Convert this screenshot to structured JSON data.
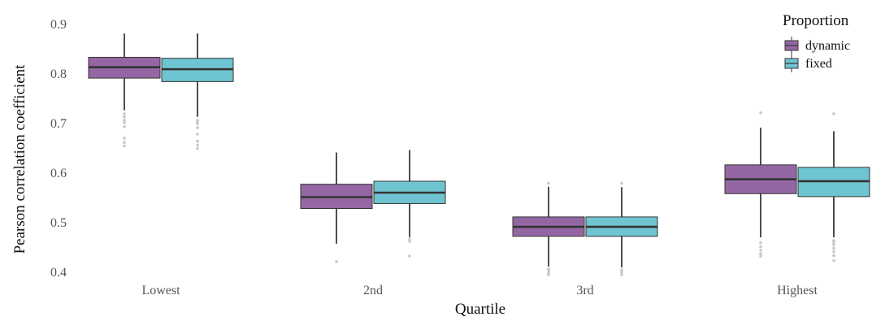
{
  "chart_data": {
    "type": "boxplot",
    "xlabel": "Quartile",
    "ylabel": "Pearson correlation coefficient",
    "ylim": [
      0.4,
      0.9
    ],
    "yticks": [
      "0.4",
      "0.5",
      "0.6",
      "0.7",
      "0.8",
      "0.9"
    ],
    "categories": [
      "Lowest",
      "2nd",
      "3rd",
      "Highest"
    ],
    "grid": false,
    "legend": {
      "title": "Proportion",
      "position": "top-right"
    },
    "series": [
      {
        "name": "dynamic",
        "color": "#9467a4",
        "boxes": [
          {
            "category": "Lowest",
            "whisker_low": 0.725,
            "q1": 0.79,
            "median": 0.812,
            "q3": 0.832,
            "whisker_high": 0.88,
            "outliers": [
              0.718,
              0.712,
              0.705,
              0.7,
              0.692,
              0.669,
              0.66,
              0.653
            ]
          },
          {
            "category": "2nd",
            "whisker_low": 0.456,
            "q1": 0.527,
            "median": 0.55,
            "q3": 0.576,
            "whisker_high": 0.64,
            "outliers": [
              0.42
            ]
          },
          {
            "category": "3rd",
            "whisker_low": 0.41,
            "q1": 0.471,
            "median": 0.49,
            "q3": 0.51,
            "whisker_high": 0.571,
            "outliers": [
              0.578,
              0.405,
              0.401,
              0.396,
              0.393
            ]
          },
          {
            "category": "Highest",
            "whisker_low": 0.469,
            "q1": 0.557,
            "median": 0.586,
            "q3": 0.615,
            "whisker_high": 0.69,
            "outliers": [
              0.72,
              0.458,
              0.45,
              0.443,
              0.436,
              0.431
            ]
          }
        ]
      },
      {
        "name": "fixed",
        "color": "#6fc4d1",
        "boxes": [
          {
            "category": "Lowest",
            "whisker_low": 0.712,
            "q1": 0.783,
            "median": 0.808,
            "q3": 0.83,
            "whisker_high": 0.88,
            "outliers": [
              0.705,
              0.702,
              0.698,
              0.69,
              0.677,
              0.663,
              0.655,
              0.648
            ]
          },
          {
            "category": "2nd",
            "whisker_low": 0.469,
            "q1": 0.537,
            "median": 0.559,
            "q3": 0.582,
            "whisker_high": 0.645,
            "outliers": [
              0.465,
              0.461,
              0.431
            ]
          },
          {
            "category": "3rd",
            "whisker_low": 0.408,
            "q1": 0.471,
            "median": 0.49,
            "q3": 0.51,
            "whisker_high": 0.57,
            "outliers": [
              0.578,
              0.403,
              0.398,
              0.393
            ]
          },
          {
            "category": "Highest",
            "whisker_low": 0.469,
            "q1": 0.551,
            "median": 0.582,
            "q3": 0.61,
            "whisker_high": 0.683,
            "outliers": [
              0.718,
              0.462,
              0.458,
              0.454,
              0.447,
              0.44,
              0.432,
              0.422
            ]
          }
        ]
      }
    ]
  }
}
